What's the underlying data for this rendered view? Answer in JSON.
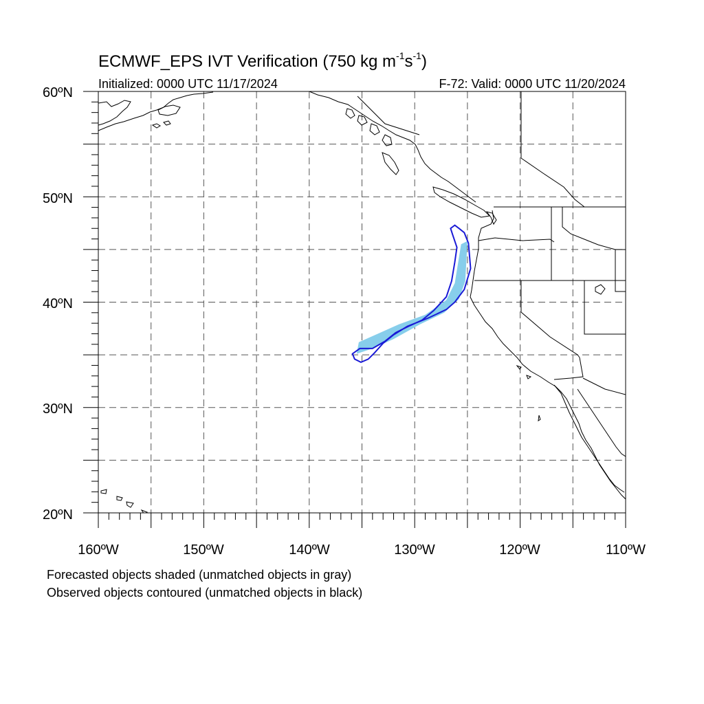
{
  "title": {
    "main": "ECMWF_EPS IVT Verification (750 kg m",
    "sup1": "-1",
    "mid": "s",
    "sup2": "-1",
    "end": ")"
  },
  "init_text": "Initialized: 0000 UTC 11/17/2024",
  "valid_text": "F-72: Valid: 0000 UTC 11/20/2024",
  "lat_labels": [
    "60ºN",
    "50ºN",
    "40ºN",
    "30ºN",
    "20ºN"
  ],
  "lon_labels": [
    "160ºW",
    "150ºW",
    "140ºW",
    "130ºW",
    "120ºW",
    "110ºW"
  ],
  "lat_range": [
    20,
    60
  ],
  "lon_range": [
    -160,
    -110
  ],
  "grid": {
    "on": true,
    "style": "dashed",
    "lat_step": 5,
    "lon_step": 5
  },
  "notes": [
    "Forecasted objects shaded (unmatched objects in gray)",
    "Observed objects contoured (unmatched objects in black)"
  ],
  "colors": {
    "forecast_fill": "#87CEEB",
    "observed_contour": "#1a1ad6",
    "coastline": "#000000",
    "grid": "#555555"
  },
  "objects": {
    "forecast_matched_shaded": {
      "lon": [
        -125.0,
        -125.2,
        -125.8,
        -127.2,
        -129.5,
        -132.0,
        -134.0,
        -135.5,
        -135.3,
        -133.5,
        -131.5,
        -129.0,
        -127.0,
        -126.2,
        -125.6
      ],
      "lat": [
        45.8,
        42.0,
        40.3,
        39.0,
        37.9,
        36.5,
        35.6,
        35.1,
        36.2,
        37.0,
        37.9,
        38.8,
        40.2,
        41.8,
        45.5
      ]
    },
    "observed_matched_contour": {
      "lon": [
        -126.2,
        -125.8,
        -125.3,
        -124.9,
        -124.7,
        -125.3,
        -126.2,
        -127.0,
        -128.7,
        -130.7,
        -132.0,
        -133.0,
        -133.8,
        -134.4,
        -135.1,
        -135.7,
        -135.9,
        -135.2,
        -134.0,
        -132.8,
        -131.8,
        -130.6,
        -129.3,
        -128.2,
        -127.0,
        -126.5,
        -126.2,
        -126.0,
        -126.4,
        -126.6
      ],
      "lat": [
        47.3,
        47.0,
        46.6,
        45.6,
        43.2,
        41.2,
        40.0,
        39.3,
        38.5,
        37.7,
        36.9,
        36.1,
        35.2,
        34.6,
        34.3,
        34.6,
        35.1,
        35.6,
        35.6,
        36.3,
        37.1,
        37.7,
        38.3,
        39.2,
        40.5,
        42.0,
        43.8,
        45.2,
        46.4,
        47.0
      ]
    }
  }
}
